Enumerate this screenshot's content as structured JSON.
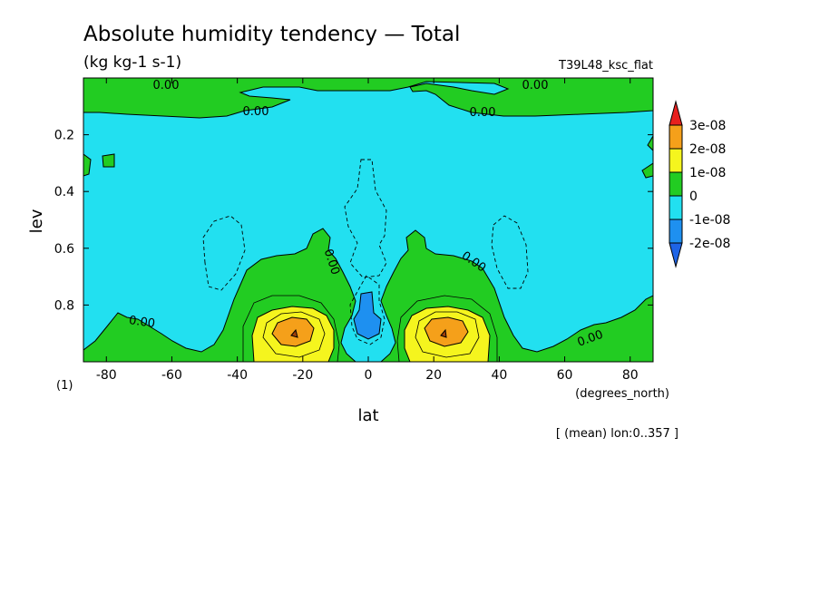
{
  "chart_data": {
    "type": "contour",
    "title": "Absolute humidity tendency — Total",
    "subtitle": "(kg kg-1 s-1)",
    "experiment": "T39L48_ksc_flat",
    "xlabel": "lat",
    "x_units": "(degrees_north)",
    "ylabel": "lev",
    "y_units": "(1)",
    "footnote": "[ (mean) lon:0..357 ]",
    "xlim": [
      -87,
      87
    ],
    "ylim": [
      1.0,
      0.0
    ],
    "x_ticks": [
      -80,
      -60,
      -40,
      -20,
      0,
      20,
      40,
      60,
      80
    ],
    "y_ticks": [
      0.2,
      0.4,
      0.6,
      0.8
    ],
    "contour_label": "0.00",
    "colorbar": {
      "labels": [
        "3e-08",
        "2e-08",
        "1e-08",
        "0",
        "-1e-08",
        "-2e-08"
      ],
      "colors": [
        "#e8201e",
        "#f5a01a",
        "#f5f51e",
        "#22cc22",
        "#22e0f0",
        "#1e90f0",
        "#1e64e6"
      ]
    },
    "features": [
      {
        "name": "positive maximum south",
        "lat": -23,
        "lev": 0.89,
        "level": "3e-08"
      },
      {
        "name": "positive maximum north",
        "lat": 23,
        "lev": 0.89,
        "level": "3e-08"
      },
      {
        "name": "negative minimum equator",
        "lat": 0,
        "lev": 0.84,
        "level": "-1e-08"
      }
    ]
  }
}
